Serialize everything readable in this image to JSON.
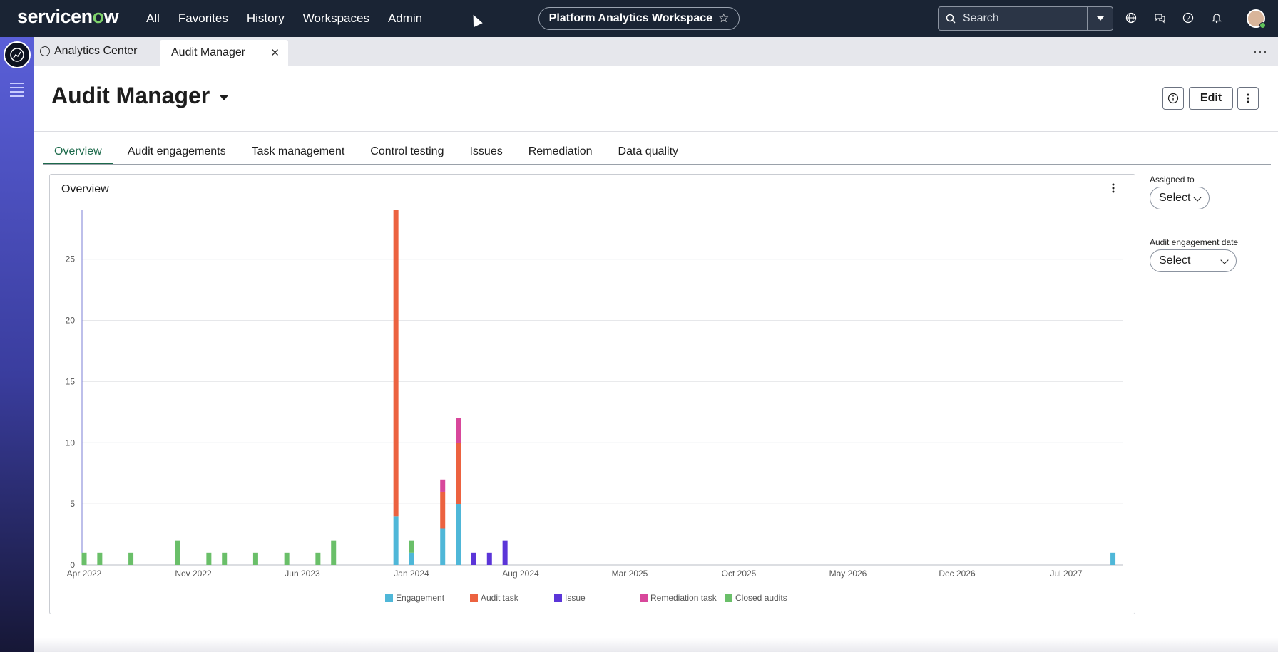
{
  "nav": {
    "brand_left": "servicen",
    "brand_o": "o",
    "brand_right": "w",
    "links": [
      "All",
      "Favorites",
      "History",
      "Workspaces",
      "Admin"
    ],
    "workspace_pill": "Platform Analytics Workspace",
    "search_placeholder": "Search"
  },
  "tabs": {
    "app_tab": "Analytics Center",
    "active_tab": "Audit Manager"
  },
  "header": {
    "title": "Audit Manager",
    "edit_label": "Edit"
  },
  "subtabs": [
    "Overview",
    "Audit engagements",
    "Task management",
    "Control testing",
    "Issues",
    "Remediation",
    "Data quality"
  ],
  "card": {
    "title": "Overview"
  },
  "filters": {
    "assigned_label": "Assigned to",
    "assigned_value": "Select",
    "date_label": "Audit engagement date",
    "date_value": "Select"
  },
  "chart_data": {
    "type": "bar",
    "stacked": true,
    "x_axis": "time (monthly)",
    "x_ticks": [
      "Apr 2022",
      "Nov 2022",
      "Jun 2023",
      "Jan 2024",
      "Aug 2024",
      "Mar 2025",
      "Oct 2025",
      "May 2026",
      "Dec 2026",
      "Jul 2027"
    ],
    "ylim": [
      0,
      29
    ],
    "y_ticks": [
      0,
      5,
      10,
      15,
      20,
      25
    ],
    "grid": true,
    "legend_position": "bottom",
    "series_colors": {
      "Engagement": "#4fb7d8",
      "Audit task": "#ec6240",
      "Issue": "#5b35d8",
      "Remediation task": "#d8479b",
      "Closed audits": "#6abf69"
    },
    "series_order": [
      "Engagement",
      "Audit task",
      "Issue",
      "Remediation task",
      "Closed audits"
    ],
    "bars": [
      {
        "date": "2022-04",
        "values": {
          "Closed audits": 1
        }
      },
      {
        "date": "2022-05",
        "values": {
          "Closed audits": 1
        }
      },
      {
        "date": "2022-07",
        "values": {
          "Closed audits": 1
        }
      },
      {
        "date": "2022-10",
        "values": {
          "Closed audits": 2
        }
      },
      {
        "date": "2022-12",
        "values": {
          "Closed audits": 1
        }
      },
      {
        "date": "2023-01",
        "values": {
          "Closed audits": 1
        }
      },
      {
        "date": "2023-03",
        "values": {
          "Closed audits": 1
        }
      },
      {
        "date": "2023-05",
        "values": {
          "Closed audits": 1
        }
      },
      {
        "date": "2023-07",
        "values": {
          "Closed audits": 1
        }
      },
      {
        "date": "2023-08",
        "values": {
          "Closed audits": 2
        }
      },
      {
        "date": "2023-12",
        "values": {
          "Engagement": 4,
          "Audit task": 25
        }
      },
      {
        "date": "2024-01",
        "values": {
          "Engagement": 1,
          "Closed audits": 1
        }
      },
      {
        "date": "2024-03",
        "values": {
          "Engagement": 3,
          "Audit task": 3,
          "Remediation task": 1
        }
      },
      {
        "date": "2024-04",
        "values": {
          "Engagement": 5,
          "Audit task": 5,
          "Remediation task": 2
        }
      },
      {
        "date": "2024-05",
        "values": {
          "Issue": 1
        }
      },
      {
        "date": "2024-06",
        "values": {
          "Issue": 1
        }
      },
      {
        "date": "2024-07",
        "values": {
          "Issue": 2
        }
      },
      {
        "date": "2027-10",
        "values": {
          "Engagement": 1
        }
      }
    ]
  }
}
